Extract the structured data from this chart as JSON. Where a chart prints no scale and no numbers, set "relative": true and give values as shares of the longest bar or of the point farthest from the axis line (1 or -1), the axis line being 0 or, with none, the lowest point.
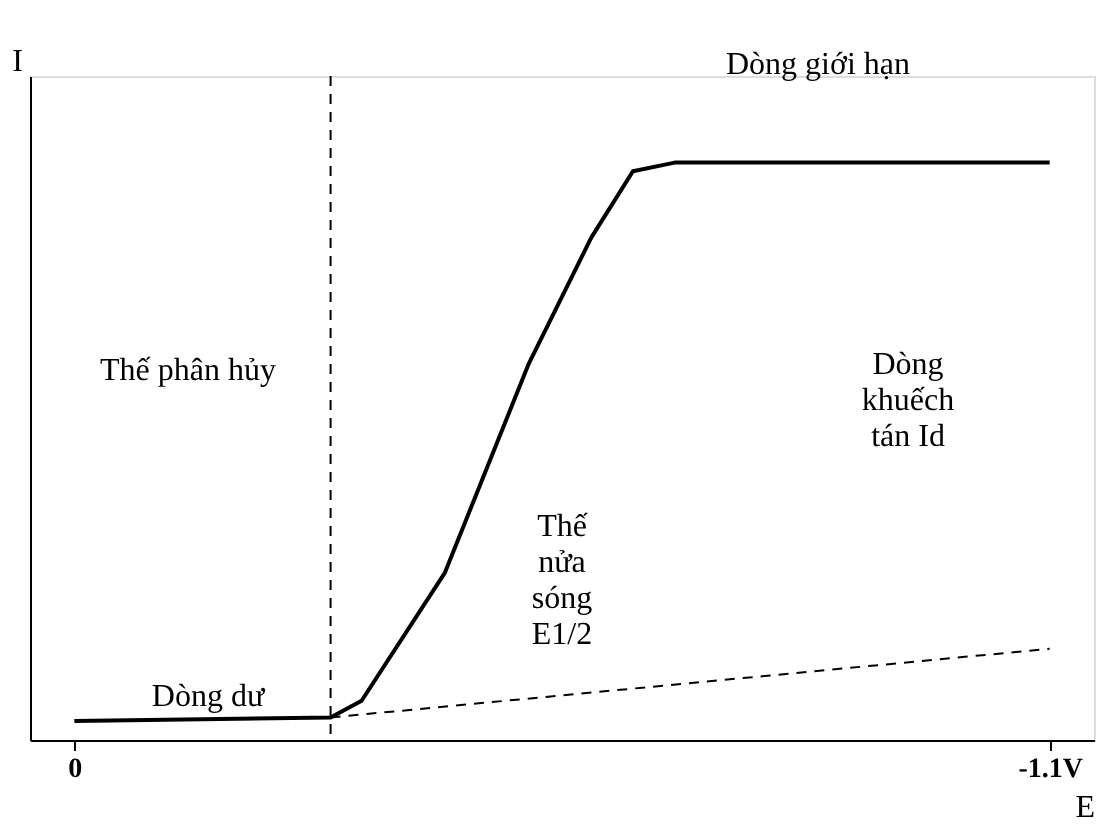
{
  "chart_data": {
    "type": "line",
    "relative": true,
    "xlabel": "E",
    "ylabel": "I",
    "xlim": [
      0.05,
      -1.15
    ],
    "xticks": [
      0,
      {
        "value": -1.1,
        "label": "-1.1V"
      }
    ],
    "grid": false,
    "marker": "none",
    "series": [
      {
        "color": "#000000",
        "line_style": "solid",
        "x": [
          0,
          -0.289,
          -0.324,
          -0.418,
          -0.512,
          -0.583,
          -0.63,
          -0.677,
          -1.1
        ],
        "values": [
          0.033,
          0.039,
          0.068,
          0.29,
          0.65,
          0.87,
          0.985,
          1,
          1
        ]
      },
      {
        "type": "line",
        "color": "#000000",
        "line_style": "dashed",
        "x": [
          -0.289,
          -1.1
        ],
        "values": [
          0.039,
          0.158
        ]
      }
    ],
    "ref_lines": [
      {
        "axis": "x",
        "value": -0.289,
        "line_style": "dashed",
        "color": "#000000"
      }
    ],
    "annotations": [
      "Dòng giới hạn",
      "Thế phân hủy",
      "Dòng dư",
      "Thế\nnửa\nsóng\nE1/2",
      "Dòng\nkhuếch\ntán Id"
    ]
  }
}
